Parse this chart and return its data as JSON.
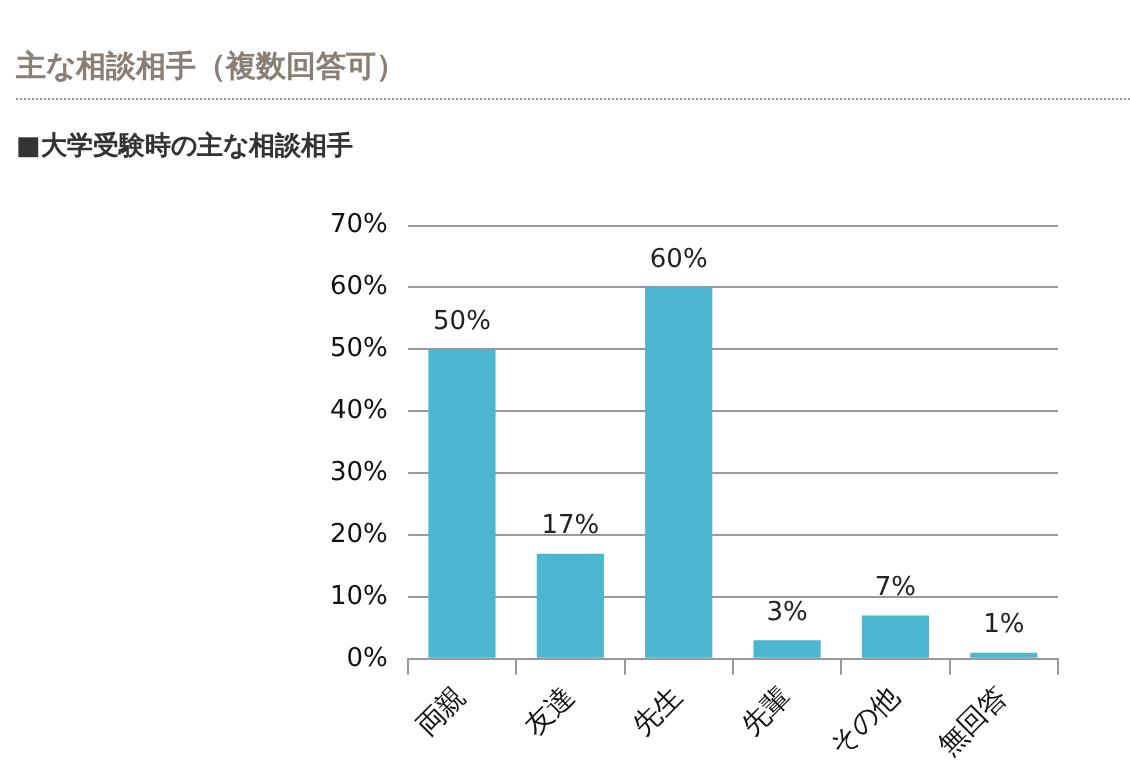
{
  "chart_data": {
    "type": "bar",
    "title": "主な相談相手（複数回答可）",
    "subtitle": "■大学受験時の主な相談相手",
    "categories": [
      "両親",
      "友達",
      "先生",
      "先輩",
      "その他",
      "無回答"
    ],
    "values": [
      50,
      17,
      60,
      3,
      7,
      1
    ],
    "color": "#4bb6cf",
    "ylim": [
      0,
      70
    ],
    "yticks": [
      {
        "value": 0,
        "label": "0%"
      },
      {
        "value": 10,
        "label": "10%"
      },
      {
        "value": 20,
        "label": "20%"
      },
      {
        "value": 30,
        "label": "30%"
      },
      {
        "value": 40,
        "label": "40%"
      },
      {
        "value": 50,
        "label": "50%"
      },
      {
        "value": 60,
        "label": "60%"
      },
      {
        "value": 70,
        "label": "70%"
      }
    ],
    "value_labels": [
      "50%",
      "17%",
      "60%",
      "3%",
      "7%",
      "1%"
    ],
    "grid": "y",
    "legend": false
  }
}
